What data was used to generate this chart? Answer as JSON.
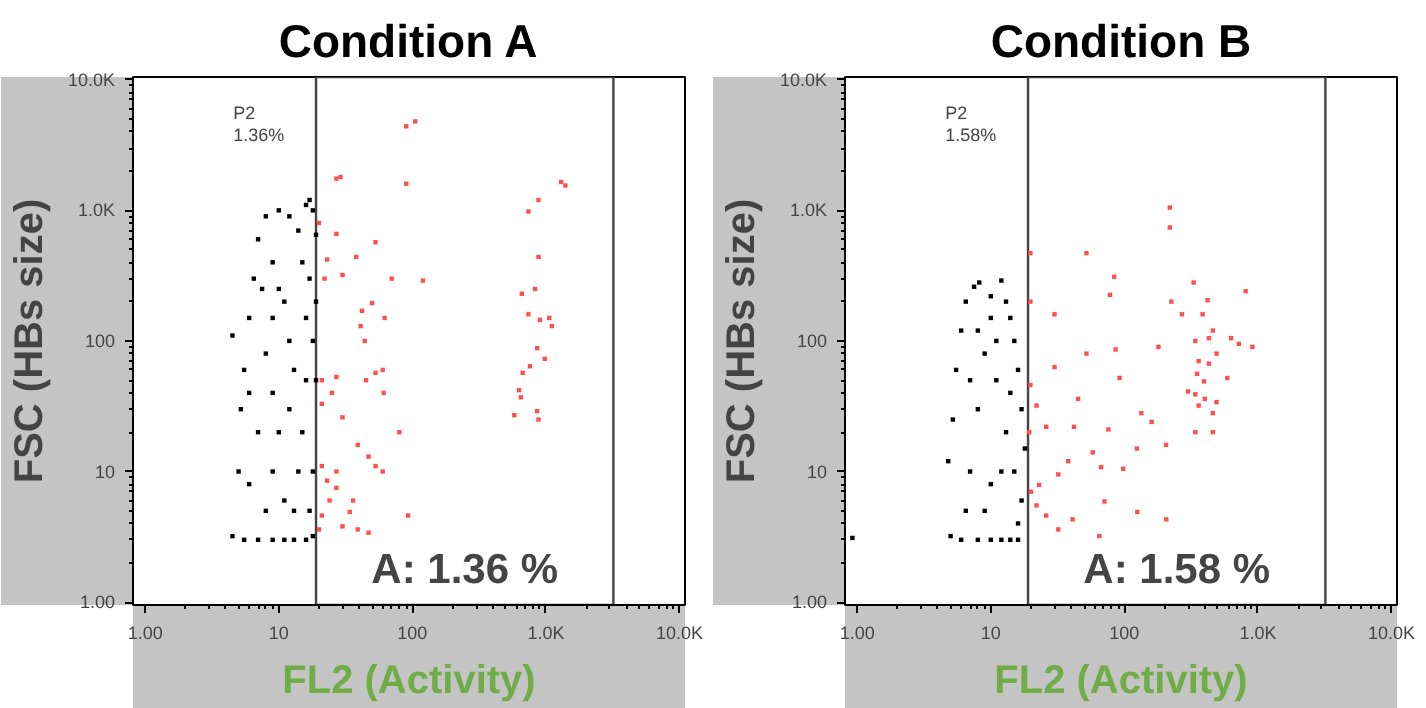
{
  "chart_data": [
    {
      "type": "scatter",
      "title": "Condition A",
      "xlabel": "FL2 (Activity)",
      "ylabel": "FSC (HBs size)",
      "log": "xy",
      "grid": false,
      "marker": "square",
      "xlim": [
        0.81,
        11000
      ],
      "ylim": [
        0.95,
        10500
      ],
      "xticks": [
        {
          "value": 1,
          "label": "1.00"
        },
        10,
        100,
        {
          "value": 1000,
          "label": "1.0K"
        },
        {
          "value": 10000,
          "label": "10.0K"
        }
      ],
      "yticks": [
        {
          "value": 1,
          "label": "1.00"
        },
        10,
        100,
        {
          "value": 1000,
          "label": "1.0K"
        },
        {
          "value": 10000,
          "label": "10.0K"
        }
      ],
      "annotations": [
        "P2",
        "1.36%"
      ],
      "bands": [
        {
          "axis": "x",
          "from": 19,
          "to": 3200,
          "label": "A: 1.36 %"
        }
      ],
      "series": [
        {
          "color": "#000000",
          "x": [
            4.5,
            4.5,
            5.5,
            7,
            9,
            11,
            13,
            16,
            18,
            5,
            5.2,
            5.5,
            6,
            6.5,
            7,
            8,
            10,
            12,
            14,
            16,
            17,
            18,
            19,
            15,
            17,
            19,
            18,
            16,
            15,
            14,
            13,
            8,
            9,
            10,
            9,
            8,
            9,
            10,
            9,
            11,
            12,
            7,
            6,
            12,
            16,
            6,
            11,
            13,
            7.5,
            18,
            17,
            19
          ],
          "values": [
            110,
            3.2,
            3,
            3,
            3,
            3,
            3,
            3,
            3.2,
            10,
            30,
            60,
            150,
            300,
            600,
            900,
            1000,
            900,
            700,
            1100,
            1200,
            1000,
            650,
            400,
            300,
            200,
            100,
            50,
            20,
            10,
            5,
            5,
            10,
            20,
            40,
            80,
            150,
            250,
            400,
            200,
            100,
            20,
            8,
            30,
            150,
            40,
            6,
            60,
            250,
            10,
            5,
            50
          ]
        },
        {
          "color": "#ff5050",
          "x": [
            105,
            90,
            27,
            29,
            90,
            1300,
            1400,
            880,
            740,
            20,
            27,
            53,
            23,
            38,
            22,
            30,
            70,
            120,
            880,
            50,
            42,
            62,
            41,
            44,
            660,
            830,
            740,
            900,
            1060,
            1110,
            860,
            980,
            760,
            670,
            630,
            650,
            580,
            860,
            880,
            21,
            27,
            25,
            45,
            53,
            60,
            61,
            21,
            30,
            80,
            21,
            27,
            23,
            27,
            24,
            36,
            39,
            47,
            53,
            60,
            21,
            30,
            39,
            47,
            34,
            93,
            20
          ],
          "values": [
            4800,
            4400,
            1750,
            1800,
            1600,
            1650,
            1550,
            1200,
            980,
            800,
            660,
            570,
            420,
            440,
            300,
            320,
            300,
            290,
            440,
            195,
            170,
            150,
            130,
            100,
            230,
            250,
            160,
            145,
            150,
            130,
            88,
            73,
            64,
            57,
            42,
            37,
            27,
            29,
            25,
            50,
            53,
            40,
            50,
            57,
            60,
            40,
            33,
            26,
            20,
            11,
            10,
            8.5,
            7.5,
            6,
            6,
            16,
            13,
            11,
            10,
            4.6,
            3.8,
            3.6,
            3.4,
            4.9,
            4.6,
            3.6
          ]
        }
      ]
    },
    {
      "type": "scatter",
      "title": "Condition B",
      "xlabel": "FL2 (Activity)",
      "ylabel": "FSC (HBs size)",
      "log": "xy",
      "grid": false,
      "marker": "square",
      "xlim": [
        0.81,
        11000
      ],
      "ylim": [
        0.95,
        10500
      ],
      "xticks": [
        {
          "value": 1,
          "label": "1.00"
        },
        10,
        100,
        {
          "value": 1000,
          "label": "1.0K"
        },
        {
          "value": 10000,
          "label": "10.0K"
        }
      ],
      "yticks": [
        {
          "value": 1,
          "label": "1.00"
        },
        10,
        100,
        {
          "value": 1000,
          "label": "1.0K"
        },
        {
          "value": 10000,
          "label": "10.0K"
        }
      ],
      "annotations": [
        "P2",
        "1.58%"
      ],
      "bands": [
        {
          "axis": "x",
          "from": 19,
          "to": 3200,
          "label": "A: 1.58 %"
        }
      ],
      "series": [
        {
          "color": "#000000",
          "x": [
            0.92,
            4.8,
            5,
            6,
            8,
            10,
            12,
            14,
            16,
            5.2,
            5.5,
            6,
            6.5,
            7.5,
            8.2,
            10,
            12,
            13,
            14,
            15,
            16,
            17,
            18,
            17,
            16,
            7,
            8,
            9,
            10,
            8,
            11,
            9,
            12,
            7,
            13,
            11,
            10,
            6.5,
            15,
            14
          ],
          "values": [
            3.1,
            12,
            3.2,
            3,
            3,
            3,
            3,
            3,
            3,
            25,
            60,
            120,
            200,
            260,
            280,
            220,
            290,
            200,
            150,
            100,
            60,
            30,
            15,
            6,
            4,
            10,
            30,
            80,
            150,
            120,
            50,
            5,
            10,
            50,
            20,
            100,
            8,
            5,
            10,
            40
          ]
        },
        {
          "color": "#ff5050",
          "x": [
            219,
            219,
            19.8,
            52,
            84,
            78,
            19.8,
            30,
            225,
            270,
            330,
            420,
            385,
            810,
            180,
            340,
            460,
            430,
            630,
            720,
            910,
            490,
            360,
            430,
            350,
            395,
            590,
            300,
            340,
            400,
            490,
            360,
            460,
            340,
            460,
            86,
            92,
            52,
            45,
            30,
            19.8,
            22,
            19.4,
            26,
            42,
            58,
            76,
            134,
            160,
            205,
            124,
            98,
            67,
            38,
            32,
            23,
            20,
            22,
            26,
            41,
            32,
            71,
            125,
            206,
            65
          ],
          "values": [
            1050,
            740,
            470,
            470,
            310,
            225,
            200,
            160,
            200,
            160,
            280,
            205,
            160,
            240,
            90,
            100,
            120,
            105,
            105,
            95,
            90,
            80,
            70,
            67,
            56,
            49,
            52,
            41,
            39,
            36,
            34,
            32,
            28,
            20,
            20,
            86,
            52,
            80,
            36,
            63,
            46,
            32,
            20,
            22,
            22,
            14,
            21,
            28,
            24,
            16,
            15,
            10.5,
            10.8,
            12,
            9.5,
            7.9,
            7,
            5.5,
            4.6,
            4.3,
            3.6,
            5.9,
            4.9,
            4.3,
            3.2
          ]
        }
      ]
    }
  ]
}
